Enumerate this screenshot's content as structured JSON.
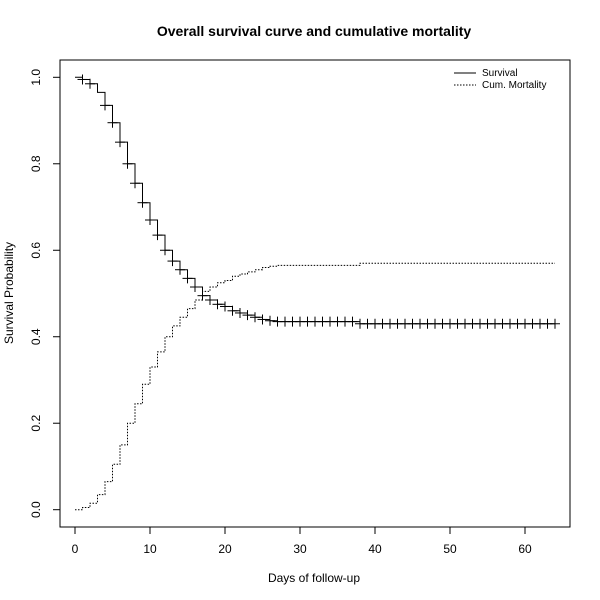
{
  "chart_data": {
    "type": "line",
    "title": "Overall survival curve and cumulative mortality",
    "xlabel": "Days of follow-up",
    "ylabel": "Survival Probability",
    "xlim": [
      -2,
      66
    ],
    "ylim": [
      -0.04,
      1.04
    ],
    "x_ticks": [
      0,
      10,
      20,
      30,
      40,
      50,
      60
    ],
    "x_tick_labels": [
      "0",
      "10",
      "20",
      "30",
      "40",
      "50",
      "60"
    ],
    "y_ticks": [
      0.0,
      0.2,
      0.4,
      0.6,
      0.8,
      1.0
    ],
    "y_tick_labels": [
      "0.0",
      "0.2",
      "0.4",
      "0.6",
      "0.8",
      "1.0"
    ],
    "grid": false,
    "legend_position": "top-right",
    "series": [
      {
        "name": "Survival",
        "line_style": "solid",
        "step": true,
        "x": [
          0,
          1,
          2,
          3,
          4,
          5,
          6,
          7,
          8,
          9,
          10,
          11,
          12,
          13,
          14,
          15,
          16,
          17,
          18,
          19,
          20,
          21,
          22,
          23,
          24,
          25,
          26,
          27,
          38,
          64
        ],
        "y": [
          1.0,
          0.995,
          0.985,
          0.965,
          0.935,
          0.895,
          0.85,
          0.8,
          0.755,
          0.71,
          0.67,
          0.635,
          0.6,
          0.575,
          0.555,
          0.535,
          0.515,
          0.495,
          0.485,
          0.475,
          0.47,
          0.46,
          0.455,
          0.45,
          0.445,
          0.44,
          0.437,
          0.435,
          0.43,
          0.43
        ],
        "censor_times": [
          1,
          2,
          4,
          5,
          6,
          7,
          8,
          9,
          10,
          11,
          12,
          13,
          14,
          15,
          16,
          17,
          18,
          19,
          20,
          21,
          22,
          23,
          24,
          25,
          26,
          27,
          28,
          29,
          30,
          31,
          32,
          33,
          34,
          35,
          36,
          37,
          38,
          39,
          40,
          41,
          42,
          43,
          44,
          45,
          46,
          47,
          48,
          49,
          50,
          51,
          52,
          53,
          54,
          55,
          56,
          57,
          58,
          59,
          60,
          61,
          62,
          63,
          64
        ]
      },
      {
        "name": "Cum. Mortality",
        "line_style": "dotted",
        "step": true,
        "x": [
          0,
          1,
          2,
          3,
          4,
          5,
          6,
          7,
          8,
          9,
          10,
          11,
          12,
          13,
          14,
          15,
          16,
          17,
          18,
          19,
          20,
          21,
          22,
          23,
          24,
          25,
          26,
          27,
          38,
          64
        ],
        "y": [
          0.0,
          0.005,
          0.015,
          0.035,
          0.065,
          0.105,
          0.15,
          0.2,
          0.245,
          0.29,
          0.33,
          0.365,
          0.4,
          0.425,
          0.445,
          0.465,
          0.485,
          0.505,
          0.515,
          0.525,
          0.53,
          0.54,
          0.545,
          0.55,
          0.555,
          0.56,
          0.563,
          0.565,
          0.57,
          0.57
        ]
      }
    ]
  },
  "colors": {
    "line": "#000000",
    "background": "#ffffff"
  }
}
